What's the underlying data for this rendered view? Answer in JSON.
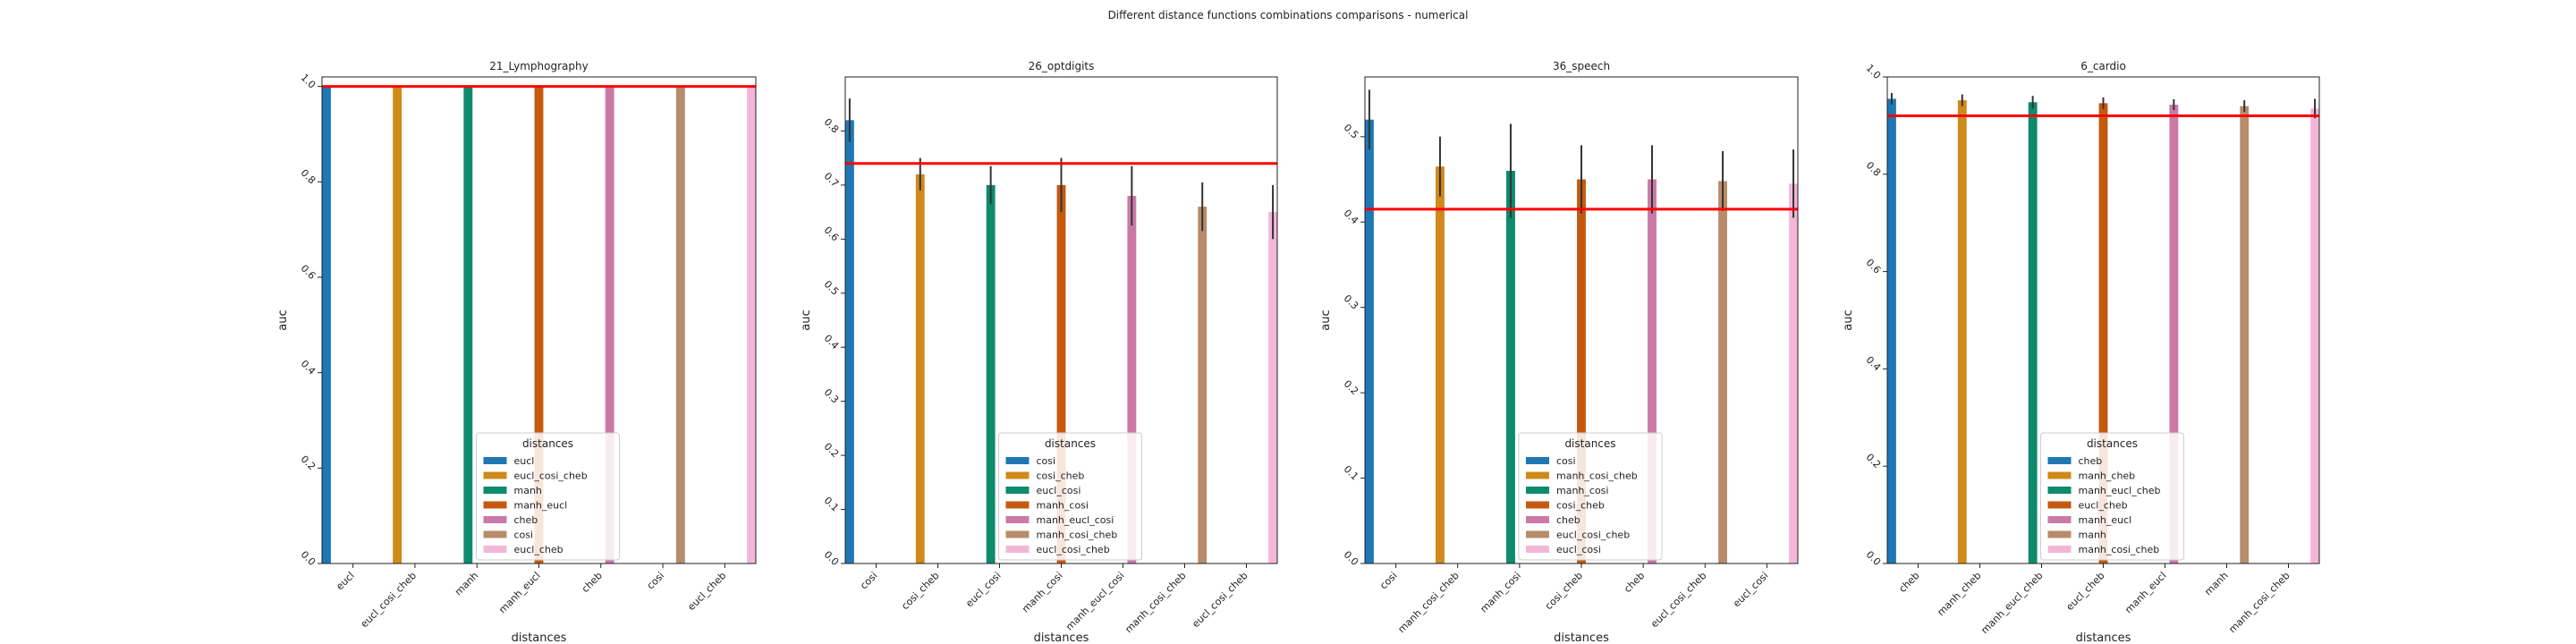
{
  "suptitle": "Different distance functions combinations comparisons - numerical",
  "palette": [
    "#1f77b4",
    "#d08a1a",
    "#0e8a6c",
    "#c45a10",
    "#cc79a7",
    "#b88c6a",
    "#f4b6d8"
  ],
  "ref_line_color": "#ff0000",
  "chart_data": [
    {
      "type": "bar",
      "title": "21_Lymphography",
      "xlabel": "distances",
      "ylabel": "auc",
      "ylim": [
        0.0,
        1.02
      ],
      "yticks": [
        "0.0",
        "0.2",
        "0.4",
        "0.6",
        "0.8",
        "1.0"
      ],
      "categories": [
        "eucl",
        "eucl_cosi_cheb",
        "manh",
        "manh_eucl",
        "cheb",
        "cosi",
        "eucl_cheb"
      ],
      "values": [
        1.0,
        1.0,
        1.0,
        1.0,
        1.0,
        1.0,
        1.0
      ],
      "err": [
        0,
        0,
        0,
        0,
        0,
        0,
        0
      ],
      "reference_line": 1.0,
      "legend_title": "distances",
      "legend_labels": [
        "eucl",
        "eucl_cosi_cheb",
        "manh",
        "manh_eucl",
        "cheb",
        "cosi",
        "eucl_cheb"
      ]
    },
    {
      "type": "bar",
      "title": "26_optdigits",
      "xlabel": "distances",
      "ylabel": "auc",
      "ylim": [
        0.0,
        0.9
      ],
      "yticks": [
        "0.0",
        "0.1",
        "0.2",
        "0.3",
        "0.4",
        "0.5",
        "0.6",
        "0.7",
        "0.8"
      ],
      "categories": [
        "cosi",
        "cosi_cheb",
        "eucl_cosi",
        "manh_cosi",
        "manh_eucl_cosi",
        "manh_cosi_cheb",
        "eucl_cosi_cheb"
      ],
      "values": [
        0.82,
        0.72,
        0.7,
        0.7,
        0.68,
        0.66,
        0.65
      ],
      "err": [
        0.04,
        0.03,
        0.035,
        0.05,
        0.055,
        0.045,
        0.05
      ],
      "reference_line": 0.74,
      "legend_title": "distances",
      "legend_labels": [
        "cosi",
        "cosi_cheb",
        "eucl_cosi",
        "manh_cosi",
        "manh_eucl_cosi",
        "manh_cosi_cheb",
        "eucl_cosi_cheb"
      ]
    },
    {
      "type": "bar",
      "title": "36_speech",
      "xlabel": "distances",
      "ylabel": "auc",
      "ylim": [
        0.0,
        0.57
      ],
      "yticks": [
        "0.0",
        "0.1",
        "0.2",
        "0.3",
        "0.4",
        "0.5"
      ],
      "categories": [
        "cosi",
        "manh_cosi_cheb",
        "manh_cosi",
        "cosi_cheb",
        "cheb",
        "eucl_cosi_cheb",
        "eucl_cosi"
      ],
      "values": [
        0.52,
        0.465,
        0.46,
        0.45,
        0.45,
        0.448,
        0.445
      ],
      "err": [
        0.035,
        0.035,
        0.055,
        0.04,
        0.04,
        0.035,
        0.04
      ],
      "reference_line": 0.415,
      "legend_title": "distances",
      "legend_labels": [
        "cosi",
        "manh_cosi_cheb",
        "manh_cosi",
        "cosi_cheb",
        "cheb",
        "eucl_cosi_cheb",
        "eucl_cosi"
      ]
    },
    {
      "type": "bar",
      "title": "6_cardio",
      "xlabel": "distances",
      "ylabel": "auc",
      "ylim": [
        0.0,
        1.0
      ],
      "yticks": [
        "0.0",
        "0.2",
        "0.4",
        "0.6",
        "0.8",
        "1.0"
      ],
      "categories": [
        "cheb",
        "manh_cheb",
        "manh_eucl_cheb",
        "eucl_cheb",
        "manh_eucl",
        "manh",
        "manh_cosi_cheb"
      ],
      "values": [
        0.955,
        0.952,
        0.948,
        0.946,
        0.943,
        0.94,
        0.935
      ],
      "err": [
        0.012,
        0.012,
        0.013,
        0.012,
        0.011,
        0.012,
        0.02
      ],
      "reference_line": 0.92,
      "legend_title": "distances",
      "legend_labels": [
        "cheb",
        "manh_cheb",
        "manh_eucl_cheb",
        "eucl_cheb",
        "manh_eucl",
        "manh",
        "manh_cosi_cheb"
      ]
    }
  ]
}
